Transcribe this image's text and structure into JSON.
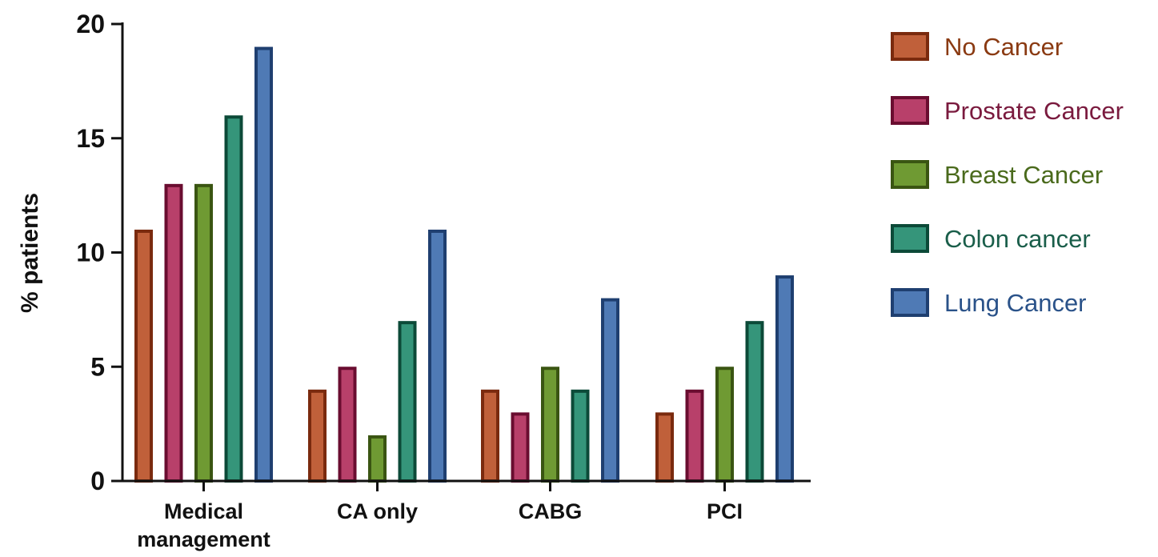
{
  "chart_data": {
    "type": "bar",
    "title": "",
    "xlabel": "",
    "ylabel": "% patients",
    "ylim": [
      0,
      20
    ],
    "yticks": [
      0,
      5,
      10,
      15,
      20
    ],
    "grid": false,
    "legend_position": "right",
    "categories": [
      [
        "Medical",
        "management"
      ],
      [
        "CA only"
      ],
      [
        "CABG"
      ],
      [
        "PCI"
      ]
    ],
    "series": [
      {
        "name": "No Cancer",
        "color": "#c0603a",
        "edge": "#7a2a0e",
        "text_color": "#8a3a12",
        "values": [
          11,
          4,
          4,
          3
        ]
      },
      {
        "name": "Prostate Cancer",
        "color": "#b8406a",
        "edge": "#6a0d30",
        "text_color": "#7a1a3e",
        "values": [
          13,
          5,
          3,
          4
        ]
      },
      {
        "name": "Breast Cancer",
        "color": "#6f9a33",
        "edge": "#3a5512",
        "text_color": "#4a6a1c",
        "values": [
          13,
          2,
          5,
          5
        ]
      },
      {
        "name": "Colon cancer",
        "color": "#35957a",
        "edge": "#0c4a38",
        "text_color": "#1a5e4a",
        "values": [
          16,
          7,
          4,
          7
        ]
      },
      {
        "name": "Lung Cancer",
        "color": "#4f7ab5",
        "edge": "#1f3f70",
        "text_color": "#2a5289",
        "values": [
          19,
          11,
          8,
          9
        ]
      }
    ]
  }
}
